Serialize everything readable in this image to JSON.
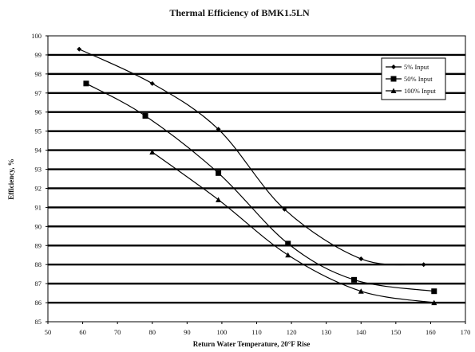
{
  "chart_data": {
    "type": "line",
    "title": "Thermal Efficiency of BMK1.5LN",
    "xlabel": "Return Water Temperature, 20°F Rise",
    "ylabel": "Efficiency, %",
    "xlim": [
      50,
      170
    ],
    "ylim": [
      85,
      100
    ],
    "xticks": [
      50,
      60,
      70,
      80,
      90,
      100,
      110,
      120,
      130,
      140,
      150,
      160,
      170
    ],
    "yticks": [
      85,
      86,
      87,
      88,
      89,
      90,
      91,
      92,
      93,
      94,
      95,
      96,
      97,
      98,
      99,
      100
    ],
    "grid": "horizontal",
    "legend_position": "top-right",
    "series": [
      {
        "name": "5% Input",
        "marker": "diamond",
        "x": [
          59,
          80,
          99,
          118,
          140,
          158
        ],
        "y": [
          99.3,
          97.5,
          95.1,
          90.9,
          88.3,
          88.0
        ]
      },
      {
        "name": "50% Input",
        "marker": "square",
        "x": [
          61,
          78,
          99,
          119,
          138,
          161
        ],
        "y": [
          97.5,
          95.8,
          92.8,
          89.1,
          87.2,
          86.6
        ]
      },
      {
        "name": "100% Input",
        "marker": "triangle",
        "x": [
          80,
          99,
          119,
          140,
          161
        ],
        "y": [
          93.9,
          91.4,
          88.5,
          86.6,
          86.0
        ]
      }
    ]
  }
}
